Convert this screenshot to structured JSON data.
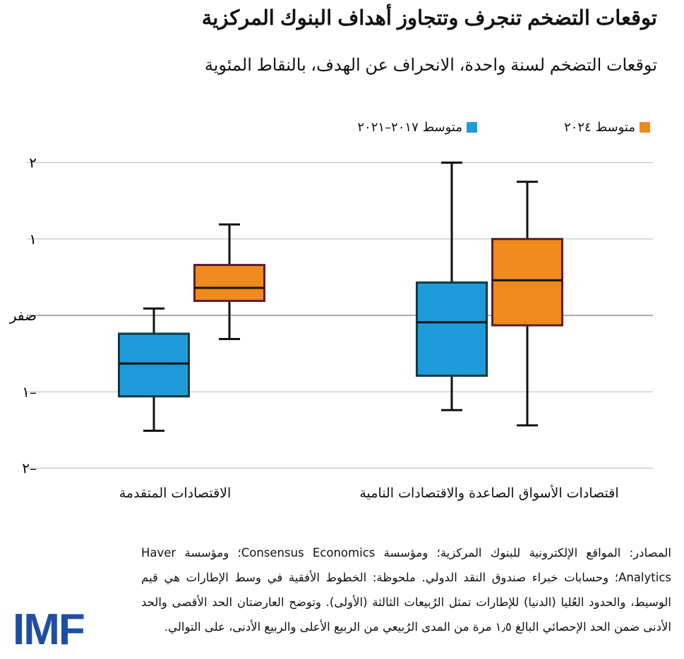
{
  "chart_data": {
    "type": "box",
    "title": "توقعات التضخم تنجرف وتتجاوز أهداف البنوك المركزية",
    "subtitle": "توقعات التضخم لسنة واحدة، الانحراف عن الهدف، بالنقاط المئوية",
    "ylim": [
      -2,
      2
    ],
    "yticks": [
      {
        "value": 2,
        "label": "٢"
      },
      {
        "value": 1,
        "label": "١"
      },
      {
        "value": 0,
        "label": "صفر"
      },
      {
        "value": -1,
        "label": "١–"
      },
      {
        "value": -2,
        "label": "٢–"
      }
    ],
    "grid": true,
    "legend_placement": "top",
    "series": [
      {
        "name": "متوسط ٢٠٢٤",
        "color": "#f08a1c"
      },
      {
        "name": "متوسط ٢٠١٧–٢٠٢١",
        "color": "#1f9ad8"
      }
    ],
    "categories": [
      {
        "label": "اقتصادات الأسواق الصاعدة والاقتصادات النامية",
        "boxes": [
          {
            "series": "متوسط ٢٠٢٤",
            "whisker_high": 1.75,
            "q3": 1.0,
            "median": 0.46,
            "q1": -0.13,
            "whisker_low": -1.44
          },
          {
            "series": "متوسط ٢٠١٧–٢٠٢١",
            "whisker_high": 2.0,
            "q3": 0.43,
            "median": -0.09,
            "q1": -0.79,
            "whisker_low": -1.24
          }
        ]
      },
      {
        "label": "الاقتصادات المتقدمة",
        "boxes": [
          {
            "series": "متوسط ٢٠٢٤",
            "whisker_high": 1.19,
            "q3": 0.66,
            "median": 0.36,
            "q1": 0.19,
            "whisker_low": -0.31
          },
          {
            "series": "متوسط ٢٠١٧–٢٠٢١",
            "whisker_high": 0.09,
            "q3": -0.24,
            "median": -0.63,
            "q1": -1.06,
            "whisker_low": -1.51
          }
        ]
      }
    ]
  },
  "notes": {
    "text": "المصادر: المواقع الإلكترونية للبنوك المركزية؛ ومؤسسة Consensus Economics؛ ومؤسسة Haver Analytics؛ وحسابات خبراء صندوق النقد الدولي. ملحوظة: الخطوط الأفقية في وسط الإطارات هي قيم الوسيط، والحدود العُليا (الدنيا) للإطارات تمثل الرُبيعات الثالثة (الأولى). وتوضح العارضتان الحد الأقصى والحد الأدنى ضمن الحد الإحصائي البالغ ١٫٥ مرة من المدى الرُبيعي من الربيع الأعلى والربيع الأدنى، على التوالي."
  },
  "logo": {
    "text": "IMF"
  }
}
